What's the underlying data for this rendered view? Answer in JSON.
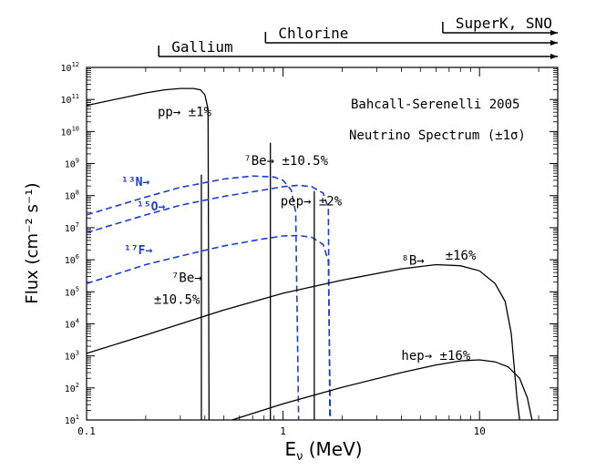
{
  "chart_data": {
    "type": "line",
    "x_scale": "log",
    "y_scale": "log",
    "xlim": [
      0.1,
      25
    ],
    "ylim": [
      10,
      1000000000000
    ],
    "xlabel": "E_ν (MeV)",
    "xlabel_main": "E",
    "xlabel_sub": "ν",
    "xlabel_units": "(MeV)",
    "ylabel": "Flux (cm⁻² s⁻¹)",
    "title": "Bahcall-Serenelli 2005",
    "subtitle": "Neutrino Spectrum (±1σ)",
    "x_ticks": [
      {
        "value": 0.1,
        "label": "0.1"
      },
      {
        "value": 1,
        "label": "1"
      },
      {
        "value": 10,
        "label": "10"
      }
    ],
    "y_ticks": [
      {
        "exp": 1,
        "base": "10",
        "sup": "1"
      },
      {
        "exp": 2,
        "base": "10",
        "sup": "2"
      },
      {
        "exp": 3,
        "base": "10",
        "sup": "3"
      },
      {
        "exp": 4,
        "base": "10",
        "sup": "4"
      },
      {
        "exp": 5,
        "base": "10",
        "sup": "5"
      },
      {
        "exp": 6,
        "base": "10",
        "sup": "6"
      },
      {
        "exp": 7,
        "base": "10",
        "sup": "7"
      },
      {
        "exp": 8,
        "base": "10",
        "sup": "8"
      },
      {
        "exp": 9,
        "base": "10",
        "sup": "9"
      },
      {
        "exp": 10,
        "base": "10",
        "sup": "10"
      },
      {
        "exp": 11,
        "base": "10",
        "sup": "11"
      },
      {
        "exp": 12,
        "base": "10",
        "sup": "12"
      }
    ],
    "detectors": [
      {
        "name": "Gallium",
        "threshold": 0.233,
        "end": 25
      },
      {
        "name": "Chlorine",
        "threshold": 0.814,
        "end": 25
      },
      {
        "name": "SuperK, SNO",
        "threshold": 6.5,
        "end": 25
      }
    ],
    "continuum_series": [
      {
        "name": "pp",
        "color": "#000000",
        "dash": false,
        "points": [
          [
            0.1,
            65000000000
          ],
          [
            0.15,
            110000000000
          ],
          [
            0.2,
            160000000000
          ],
          [
            0.25,
            200000000000
          ],
          [
            0.3,
            220000000000
          ],
          [
            0.35,
            220000000000
          ],
          [
            0.38,
            200000000000
          ],
          [
            0.4,
            140000000000
          ],
          [
            0.415,
            50000000000
          ],
          [
            0.42,
            10
          ]
        ]
      },
      {
        "name": "13N",
        "color": "#1a3cdc",
        "dash": true,
        "points": [
          [
            0.1,
            25000000
          ],
          [
            0.2,
            90000000
          ],
          [
            0.3,
            180000000
          ],
          [
            0.5,
            330000000
          ],
          [
            0.7,
            410000000
          ],
          [
            0.9,
            380000000
          ],
          [
            1.0,
            300000000
          ],
          [
            1.1,
            150000000
          ],
          [
            1.16,
            30000000
          ],
          [
            1.2,
            10
          ]
        ]
      },
      {
        "name": "15O",
        "color": "#1a3cdc",
        "dash": true,
        "points": [
          [
            0.1,
            7000000
          ],
          [
            0.2,
            25000000
          ],
          [
            0.3,
            50000000
          ],
          [
            0.5,
            95000000
          ],
          [
            0.8,
            150000000
          ],
          [
            1.0,
            190000000
          ],
          [
            1.2,
            210000000
          ],
          [
            1.4,
            190000000
          ],
          [
            1.6,
            120000000
          ],
          [
            1.7,
            40000000
          ],
          [
            1.73,
            10
          ]
        ]
      },
      {
        "name": "17F",
        "color": "#1a3cdc",
        "dash": true,
        "points": [
          [
            0.1,
            180000
          ],
          [
            0.2,
            700000
          ],
          [
            0.3,
            1300000
          ],
          [
            0.5,
            2700000
          ],
          [
            0.8,
            4500000
          ],
          [
            1.0,
            5500000
          ],
          [
            1.2,
            5700000
          ],
          [
            1.4,
            5000000
          ],
          [
            1.6,
            3000000
          ],
          [
            1.7,
            900000
          ],
          [
            1.74,
            10
          ]
        ]
      },
      {
        "name": "8B",
        "color": "#000000",
        "dash": false,
        "points": [
          [
            0.1,
            1200
          ],
          [
            0.2,
            4500
          ],
          [
            0.5,
            27000
          ],
          [
            1,
            90000
          ],
          [
            2,
            230000
          ],
          [
            4,
            520000
          ],
          [
            6,
            700000
          ],
          [
            8,
            650000
          ],
          [
            10,
            450000
          ],
          [
            12,
            180000
          ],
          [
            13.5,
            50000
          ],
          [
            14.5,
            5000
          ],
          [
            15.5,
            50
          ],
          [
            16,
            10
          ]
        ]
      },
      {
        "name": "hep",
        "color": "#000000",
        "dash": false,
        "points": [
          [
            0.55,
            10
          ],
          [
            1,
            32
          ],
          [
            2,
            105
          ],
          [
            4,
            300
          ],
          [
            6,
            520
          ],
          [
            8,
            700
          ],
          [
            10,
            750
          ],
          [
            12,
            650
          ],
          [
            14,
            450
          ],
          [
            16,
            200
          ],
          [
            17.5,
            50
          ],
          [
            18.5,
            10
          ]
        ]
      }
    ],
    "lines": [
      {
        "name": "7Be (0.384 MeV)",
        "energy": 0.384,
        "flux": 450000000,
        "color": "#000000",
        "dash": false
      },
      {
        "name": "7Be (0.862 MeV)",
        "energy": 0.862,
        "flux": 4500000000,
        "color": "#000000",
        "dash": false
      },
      {
        "name": "pep",
        "energy": 1.442,
        "flux": 140000000,
        "color": "#000000",
        "dash": false
      }
    ],
    "annotations": [
      {
        "text": "pp→ ±1%",
        "x": 0.23,
        "y": 30000000000,
        "color": "#000000",
        "size": 14
      },
      {
        "text": "⁷Be→ ±10.5%",
        "x": 0.63,
        "y": 900000000,
        "color": "#000000",
        "size": 14
      },
      {
        "text": "pep→ ±2%",
        "x": 0.97,
        "y": 50000000,
        "color": "#000000",
        "size": 14
      },
      {
        "text": "¹³N→",
        "x": 0.15,
        "y": 200000000,
        "color": "#1a3cdc",
        "size": 13
      },
      {
        "text": "¹⁵O→",
        "x": 0.18,
        "y": 35000000,
        "color": "#1a3cdc",
        "size": 13
      },
      {
        "text": "¹⁷F→",
        "x": 0.155,
        "y": 1500000,
        "color": "#1a3cdc",
        "size": 13
      },
      {
        "text": "⁷Be→",
        "x": 0.27,
        "y": 200000,
        "color": "#000000",
        "size": 14
      },
      {
        "text": "±10.5%",
        "x": 0.22,
        "y": 42000,
        "color": "#000000",
        "size": 14
      },
      {
        "text": "⁸B→",
        "x": 4.0,
        "y": 700000,
        "color": "#000000",
        "size": 14
      },
      {
        "text": "±16%",
        "x": 6.7,
        "y": 1000000,
        "color": "#000000",
        "size": 14
      },
      {
        "text": "hep→ ±16%",
        "x": 4.0,
        "y": 750,
        "color": "#000000",
        "size": 14
      }
    ]
  }
}
